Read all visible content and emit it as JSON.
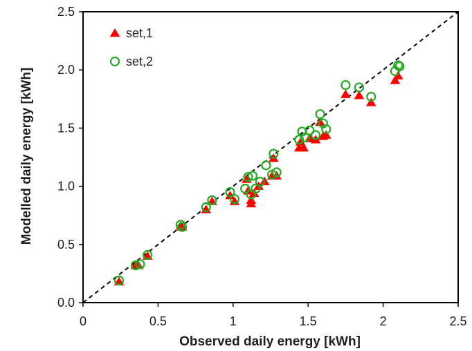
{
  "chart_data": {
    "type": "scatter",
    "xlabel": "Observed daily energy [kWh]",
    "ylabel": "Modelled daily energy [kWh]",
    "xlim": [
      0,
      2.5
    ],
    "ylim": [
      0,
      2.5
    ],
    "x_ticks": [
      "0",
      "0.5",
      "1",
      "1.5",
      "2",
      "2.5"
    ],
    "y_ticks": [
      "0.0",
      "0.5",
      "1.0",
      "1.5",
      "2.0",
      "2.5"
    ],
    "reference_line": "1:1 dashed",
    "grid": false,
    "legend_position": "top-left",
    "series": [
      {
        "name": "set,1",
        "marker": "filled-triangle",
        "color": "#ff0000",
        "points": [
          [
            0.24,
            0.18
          ],
          [
            0.35,
            0.32
          ],
          [
            0.37,
            0.32
          ],
          [
            0.43,
            0.4
          ],
          [
            0.65,
            0.66
          ],
          [
            0.66,
            0.65
          ],
          [
            0.82,
            0.8
          ],
          [
            0.86,
            0.87
          ],
          [
            0.98,
            0.92
          ],
          [
            1.01,
            0.87
          ],
          [
            1.09,
            1.06
          ],
          [
            1.1,
            0.96
          ],
          [
            1.12,
            0.88
          ],
          [
            1.12,
            0.85
          ],
          [
            1.14,
            0.94
          ],
          [
            1.17,
            1.0
          ],
          [
            1.21,
            1.04
          ],
          [
            1.26,
            1.09
          ],
          [
            1.27,
            1.24
          ],
          [
            1.29,
            1.09
          ],
          [
            1.44,
            1.33
          ],
          [
            1.45,
            1.38
          ],
          [
            1.47,
            1.33
          ],
          [
            1.51,
            1.41
          ],
          [
            1.55,
            1.4
          ],
          [
            1.58,
            1.55
          ],
          [
            1.6,
            1.43
          ],
          [
            1.62,
            1.44
          ],
          [
            1.75,
            1.79
          ],
          [
            1.84,
            1.78
          ],
          [
            1.92,
            1.72
          ],
          [
            2.08,
            1.91
          ],
          [
            2.1,
            1.95
          ]
        ]
      },
      {
        "name": "set,2",
        "marker": "open-circle",
        "color": "#22aa22",
        "points": [
          [
            0.24,
            0.19
          ],
          [
            0.35,
            0.32
          ],
          [
            0.38,
            0.33
          ],
          [
            0.43,
            0.41
          ],
          [
            0.65,
            0.67
          ],
          [
            0.66,
            0.65
          ],
          [
            0.82,
            0.82
          ],
          [
            0.86,
            0.88
          ],
          [
            0.98,
            0.95
          ],
          [
            1.01,
            0.89
          ],
          [
            1.08,
            0.98
          ],
          [
            1.1,
            1.08
          ],
          [
            1.12,
            0.93
          ],
          [
            1.13,
            1.09
          ],
          [
            1.15,
            0.98
          ],
          [
            1.18,
            1.04
          ],
          [
            1.22,
            1.18
          ],
          [
            1.26,
            1.1
          ],
          [
            1.27,
            1.28
          ],
          [
            1.29,
            1.12
          ],
          [
            1.44,
            1.4
          ],
          [
            1.46,
            1.47
          ],
          [
            1.48,
            1.42
          ],
          [
            1.51,
            1.48
          ],
          [
            1.55,
            1.44
          ],
          [
            1.58,
            1.62
          ],
          [
            1.6,
            1.54
          ],
          [
            1.62,
            1.49
          ],
          [
            1.75,
            1.87
          ],
          [
            1.84,
            1.85
          ],
          [
            1.92,
            1.77
          ],
          [
            2.08,
            1.99
          ],
          [
            2.1,
            2.04
          ],
          [
            2.11,
            2.03
          ]
        ]
      }
    ]
  }
}
